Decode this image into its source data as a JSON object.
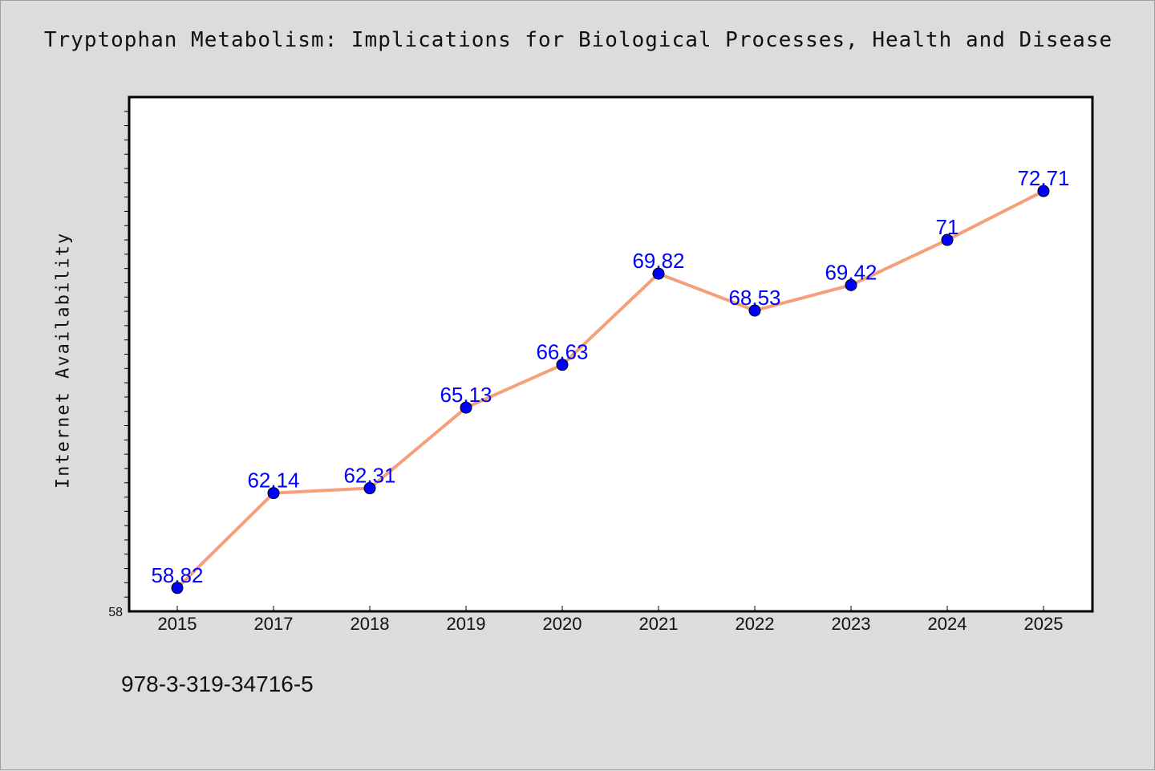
{
  "chart_data": {
    "type": "line",
    "title": "Tryptophan Metabolism: Implications for Biological Processes, Health and Disease",
    "xlabel": "",
    "ylabel": "Internet Availability",
    "categories": [
      "2015",
      "2017",
      "2018",
      "2019",
      "2020",
      "2021",
      "2022",
      "2023",
      "2024",
      "2025"
    ],
    "series": [
      {
        "values": [
          58.82,
          62.14,
          62.31,
          65.13,
          66.63,
          69.82,
          68.53,
          69.42,
          71,
          72.71
        ],
        "labels": [
          "58.82",
          "62.14",
          "62.31",
          "65.13",
          "66.63",
          "69.82",
          "68.53",
          "69.42",
          "71",
          "72.71"
        ]
      }
    ],
    "ylim": [
      58,
      76
    ],
    "y_tick_labels": [
      "58"
    ],
    "grid": false,
    "line_color": "#f4a07a",
    "marker_color": "#0000ff",
    "label_color": "#0000ff"
  },
  "footer": {
    "code": "978-3-319-34716-5"
  }
}
